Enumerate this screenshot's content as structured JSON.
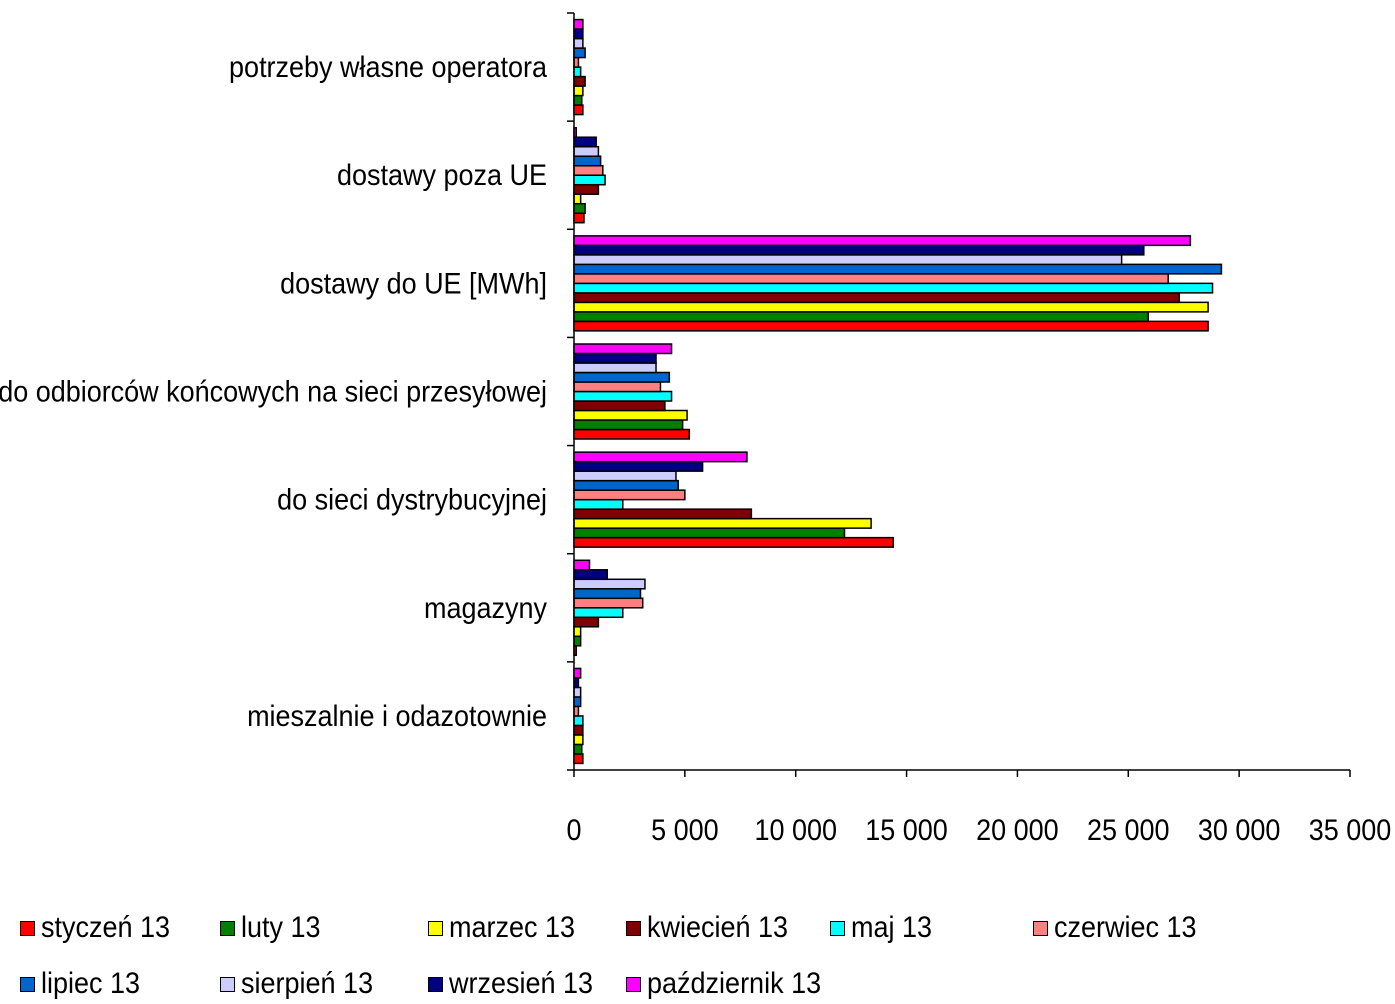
{
  "chart_data": {
    "type": "bar",
    "orientation": "horizontal",
    "categories": [
      "potrzeby własne operatora",
      "dostawy poza UE",
      "dostawy do UE [MWh]",
      "do odbiorców końcowych na sieci przesyłowej",
      "do sieci dystrybucyjnej",
      "magazyny",
      "mieszalnie i odazotownie"
    ],
    "xlim": [
      0,
      35000
    ],
    "xticks": [
      0,
      5000,
      10000,
      15000,
      20000,
      25000,
      30000,
      35000
    ],
    "xtick_labels": [
      "0",
      "5 000",
      "10 000",
      "15 000",
      "20 000",
      "25 000",
      "30 000",
      "35 000"
    ],
    "grid": false,
    "legend_position": "bottom",
    "series": [
      {
        "name": "styczeń 13",
        "color": "#ff0000",
        "values": [
          400,
          450,
          28600,
          5200,
          14400,
          100,
          400
        ]
      },
      {
        "name": "luty 13",
        "color": "#008000",
        "values": [
          350,
          500,
          25900,
          4900,
          12200,
          300,
          350
        ]
      },
      {
        "name": "marzec 13",
        "color": "#ffff00",
        "values": [
          400,
          300,
          28600,
          5100,
          13400,
          300,
          400
        ]
      },
      {
        "name": "kwiecień 13",
        "color": "#800000",
        "values": [
          500,
          1100,
          27300,
          4100,
          8000,
          1100,
          400
        ]
      },
      {
        "name": "maj 13",
        "color": "#00ffff",
        "values": [
          300,
          1400,
          28800,
          4400,
          2200,
          2200,
          400
        ]
      },
      {
        "name": "czerwiec 13",
        "color": "#ff8080",
        "values": [
          200,
          1300,
          26800,
          3900,
          5000,
          3100,
          200
        ]
      },
      {
        "name": "lipiec 13",
        "color": "#0066cc",
        "values": [
          500,
          1200,
          29200,
          4300,
          4700,
          3000,
          300
        ]
      },
      {
        "name": "sierpień 13",
        "color": "#ccccff",
        "values": [
          400,
          1100,
          24700,
          3700,
          4600,
          3200,
          300
        ]
      },
      {
        "name": "wrzesień 13",
        "color": "#000080",
        "values": [
          400,
          1000,
          25700,
          3700,
          5800,
          1500,
          200
        ]
      },
      {
        "name": "październik 13",
        "color": "#ff00ff",
        "values": [
          400,
          100,
          27800,
          4400,
          7800,
          700,
          300
        ]
      }
    ]
  }
}
